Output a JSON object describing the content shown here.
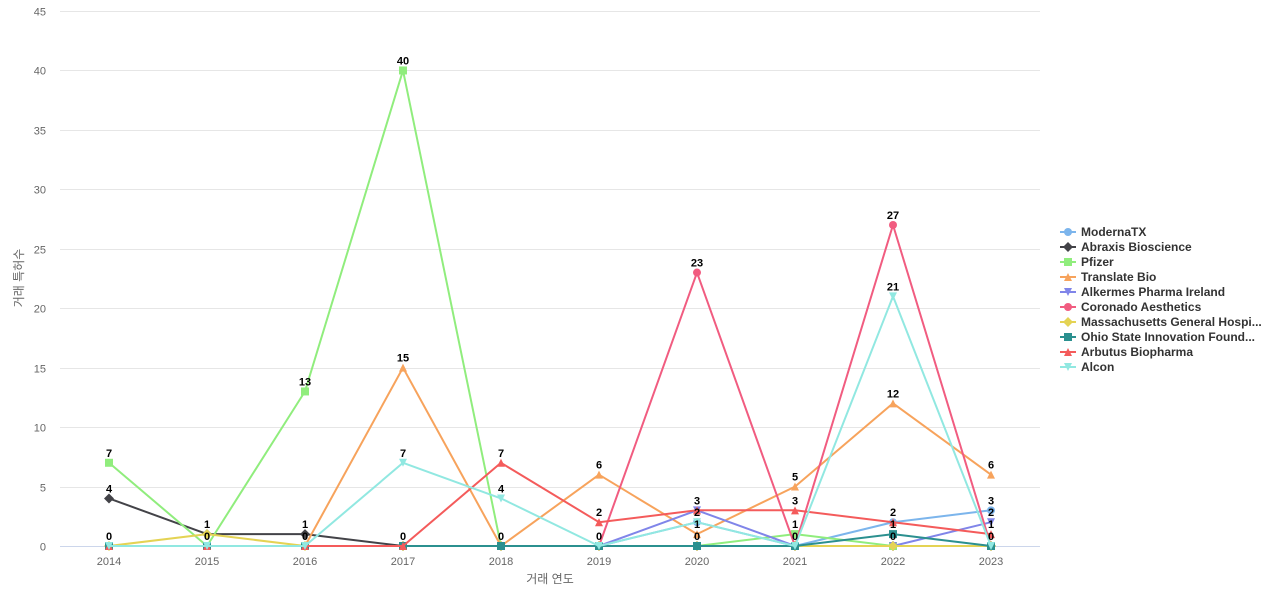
{
  "chart_data": {
    "type": "line",
    "xlabel": "거래 연도",
    "ylabel": "거래 특허수",
    "ylim": [
      0,
      45
    ],
    "yticks": [
      0,
      5,
      10,
      15,
      20,
      25,
      30,
      35,
      40,
      45
    ],
    "categories": [
      "2014",
      "2015",
      "2016",
      "2017",
      "2018",
      "2019",
      "2020",
      "2021",
      "2022",
      "2023"
    ],
    "grid": true,
    "legend_position": "right",
    "series": [
      {
        "name": "ModernaTX",
        "color": "#7cb5ec",
        "marker": "circle",
        "values": [
          0,
          0,
          0,
          0,
          0,
          0,
          2,
          0,
          2,
          3
        ]
      },
      {
        "name": "Abraxis Bioscience",
        "color": "#434348",
        "marker": "diamond",
        "values": [
          4,
          1,
          1,
          0,
          0,
          0,
          0,
          0,
          0,
          0
        ]
      },
      {
        "name": "Pfizer",
        "color": "#90ed7d",
        "marker": "square",
        "values": [
          7,
          0,
          13,
          40,
          0,
          0,
          0,
          1,
          0,
          0
        ]
      },
      {
        "name": "Translate Bio",
        "color": "#f7a35c",
        "marker": "triangle",
        "values": [
          0,
          0,
          0,
          15,
          0,
          6,
          1,
          5,
          12,
          6
        ]
      },
      {
        "name": "Alkermes Pharma Ireland",
        "color": "#8085e9",
        "marker": "triangle-down",
        "values": [
          0,
          0,
          0,
          0,
          0,
          0,
          3,
          0,
          0,
          2
        ]
      },
      {
        "name": "Coronado Aesthetics",
        "color": "#f15c80",
        "marker": "circle",
        "values": [
          0,
          0,
          0,
          0,
          0,
          0,
          23,
          0,
          27,
          0
        ]
      },
      {
        "name": "Massachusetts General Hospi...",
        "color": "#e4d354",
        "marker": "diamond",
        "values": [
          0,
          1,
          0,
          0,
          0,
          0,
          0,
          0,
          0,
          0
        ]
      },
      {
        "name": "Ohio State Innovation Found...",
        "color": "#2b908f",
        "marker": "square",
        "values": [
          0,
          0,
          0,
          0,
          0,
          0,
          0,
          0,
          1,
          0
        ]
      },
      {
        "name": "Arbutus Biopharma",
        "color": "#f45b5b",
        "marker": "triangle",
        "values": [
          0,
          0,
          0,
          0,
          7,
          2,
          3,
          3,
          2,
          1
        ]
      },
      {
        "name": "Alcon",
        "color": "#91e8e1",
        "marker": "triangle-down",
        "values": [
          0,
          0,
          0,
          7,
          4,
          0,
          2,
          0,
          21,
          0
        ]
      }
    ],
    "data_labels": [
      {
        "x": "2014",
        "value": 7
      },
      {
        "x": "2014",
        "value": 4
      },
      {
        "x": "2014",
        "value": 0
      },
      {
        "x": "2015",
        "value": 1
      },
      {
        "x": "2015",
        "value": 0
      },
      {
        "x": "2016",
        "value": 13
      },
      {
        "x": "2016",
        "value": 1
      },
      {
        "x": "2016",
        "value": 0
      },
      {
        "x": "2017",
        "value": 40
      },
      {
        "x": "2017",
        "value": 15
      },
      {
        "x": "2017",
        "value": 7
      },
      {
        "x": "2017",
        "value": 0
      },
      {
        "x": "2018",
        "value": 7
      },
      {
        "x": "2018",
        "value": 4
      },
      {
        "x": "2018",
        "value": 0
      },
      {
        "x": "2019",
        "value": 6
      },
      {
        "x": "2019",
        "value": 2
      },
      {
        "x": "2019",
        "value": 0
      },
      {
        "x": "2020",
        "value": 23
      },
      {
        "x": "2020",
        "value": 3
      },
      {
        "x": "2020",
        "value": 2
      },
      {
        "x": "2020",
        "value": 1
      },
      {
        "x": "2020",
        "value": 0
      },
      {
        "x": "2021",
        "value": 5
      },
      {
        "x": "2021",
        "value": 3
      },
      {
        "x": "2021",
        "value": 1
      },
      {
        "x": "2021",
        "value": 0
      },
      {
        "x": "2022",
        "value": 27
      },
      {
        "x": "2022",
        "value": 21
      },
      {
        "x": "2022",
        "value": 12
      },
      {
        "x": "2022",
        "value": 2
      },
      {
        "x": "2022",
        "value": 1
      },
      {
        "x": "2022",
        "value": 0
      },
      {
        "x": "2023",
        "value": 6
      },
      {
        "x": "2023",
        "value": 3
      },
      {
        "x": "2023",
        "value": 2
      },
      {
        "x": "2023",
        "value": 1
      },
      {
        "x": "2023",
        "value": 0
      }
    ]
  }
}
